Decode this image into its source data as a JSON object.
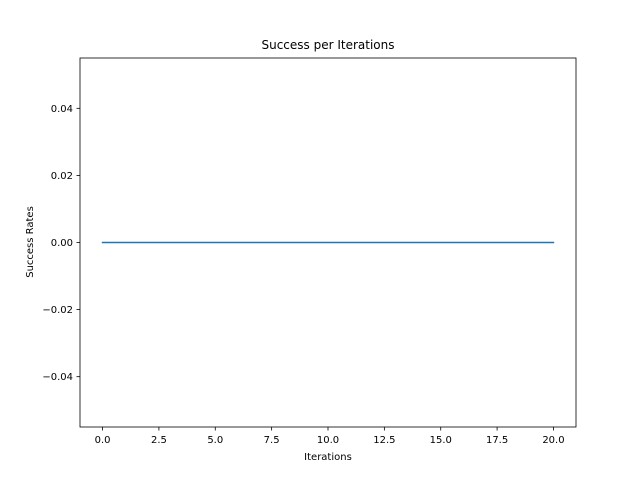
{
  "chart_data": {
    "type": "line",
    "title": "Success per Iterations",
    "xlabel": "Iterations",
    "ylabel": "Success Rates",
    "xlim": [
      -1.0,
      21.0
    ],
    "ylim": [
      -0.055,
      0.055
    ],
    "x_ticks": [
      0.0,
      2.5,
      5.0,
      7.5,
      10.0,
      12.5,
      15.0,
      17.5,
      20.0
    ],
    "x_tick_labels": [
      "0.0",
      "2.5",
      "5.0",
      "7.5",
      "10.0",
      "12.5",
      "15.0",
      "17.5",
      "20.0"
    ],
    "y_ticks": [
      -0.04,
      -0.02,
      0.0,
      0.02,
      0.04
    ],
    "y_tick_labels": [
      "−0.04",
      "−0.02",
      "0.00",
      "0.02",
      "0.04"
    ],
    "grid": false,
    "series": [
      {
        "color": "#1f77b4",
        "x": [
          0,
          1,
          2,
          3,
          4,
          5,
          6,
          7,
          8,
          9,
          10,
          11,
          12,
          13,
          14,
          15,
          16,
          17,
          18,
          19,
          20
        ],
        "y": [
          0,
          0,
          0,
          0,
          0,
          0,
          0,
          0,
          0,
          0,
          0,
          0,
          0,
          0,
          0,
          0,
          0,
          0,
          0,
          0,
          0
        ]
      }
    ]
  }
}
